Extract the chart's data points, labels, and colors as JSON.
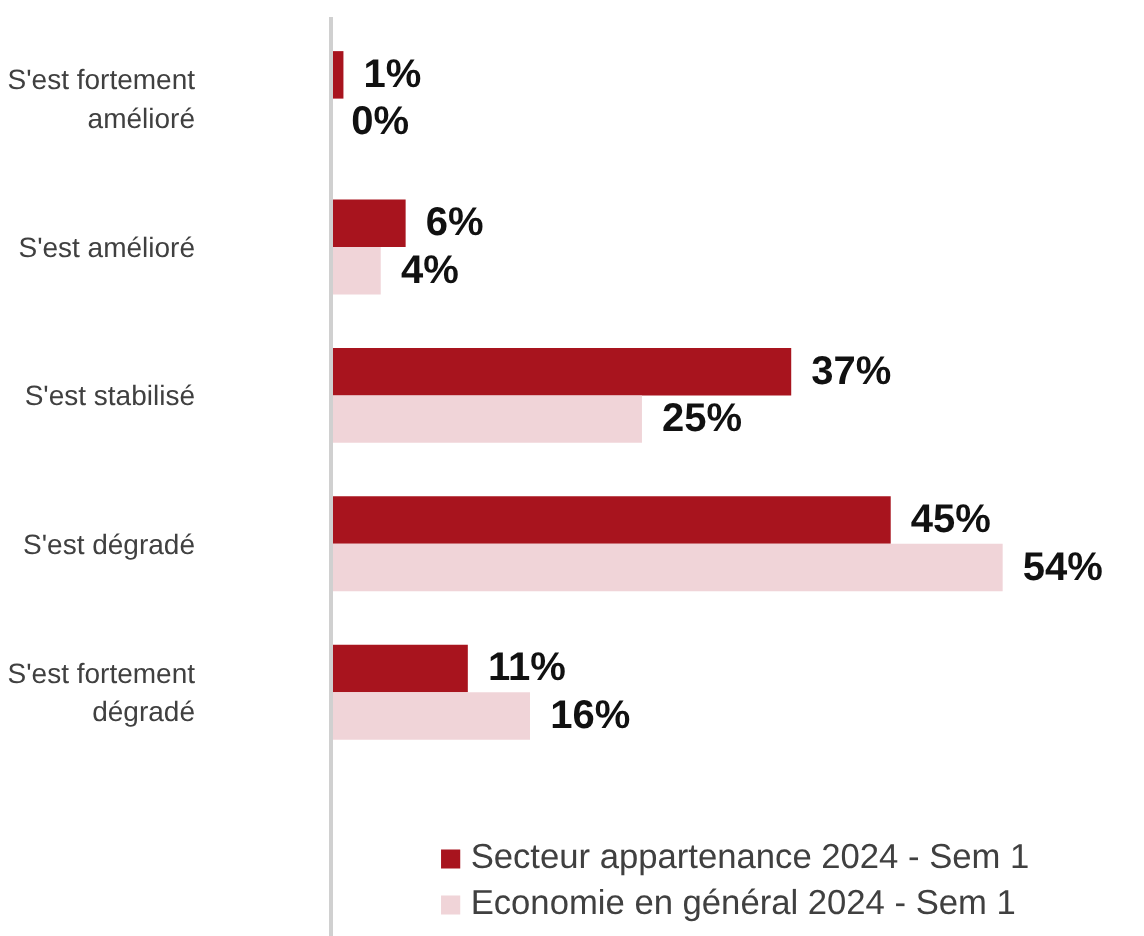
{
  "chart_data": {
    "type": "bar",
    "orientation": "horizontal",
    "categories": [
      "S'est fortement amélioré",
      "S'est amélioré",
      "S'est stabilisé",
      "S'est dégradé",
      "S'est fortement dégradé"
    ],
    "series": [
      {
        "name": "Secteur appartenance 2024 - Sem 1",
        "color": "#a8141e",
        "values": [
          1,
          6,
          37,
          45,
          11
        ],
        "value_labels": [
          "1%",
          "6%",
          "37%",
          "45%",
          "11%"
        ]
      },
      {
        "name": "Economie en général 2024 - Sem 1",
        "color": "#f0d4d8",
        "values": [
          0,
          4,
          25,
          54,
          16
        ],
        "value_labels": [
          "0%",
          "4%",
          "25%",
          "54%",
          "16%"
        ]
      }
    ],
    "legend": "bottom",
    "grid": false,
    "tick_labels": "y"
  }
}
